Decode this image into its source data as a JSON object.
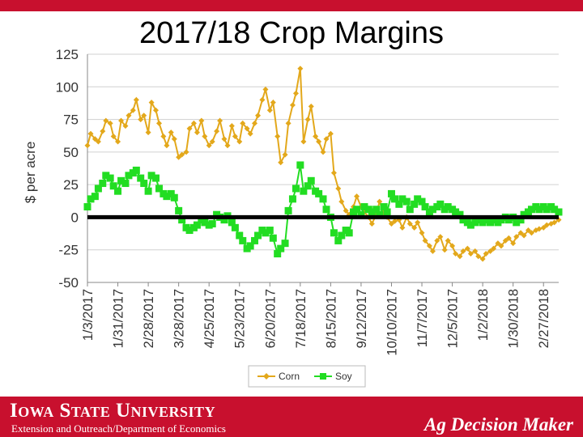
{
  "slide": {
    "title": "2017/18 Crop Margins"
  },
  "footer": {
    "university": "Iowa State University",
    "department": "Extension and Outreach/Department of Economics",
    "brand": "Ag Decision Maker"
  },
  "colors": {
    "corn": "#e3a81b",
    "soy": "#22dd22",
    "zero_line": "#000000",
    "brand_red": "#c8102e"
  },
  "chart_data": {
    "type": "line",
    "title": "2017/18 Crop Margins",
    "ylabel": "$ per acre",
    "xlabel": "",
    "ylim": [
      -50,
      125
    ],
    "yticks": [
      125,
      100,
      75,
      50,
      25,
      0,
      -25,
      -50
    ],
    "xlim": [
      "2017-01-03",
      "2018-03-13"
    ],
    "xtick_labels": [
      "1/3/2017",
      "1/31/2017",
      "2/28/2017",
      "3/28/2017",
      "4/25/2017",
      "5/23/2017",
      "6/20/2017",
      "7/18/2017",
      "8/15/2017",
      "9/12/2017",
      "10/10/2017",
      "11/7/2017",
      "12/5/2017",
      "1/2/2018",
      "1/30/2018",
      "2/27/2018"
    ],
    "xtick_dates": [
      "2017-01-03",
      "2017-01-31",
      "2017-02-28",
      "2017-03-28",
      "2017-04-25",
      "2017-05-23",
      "2017-06-20",
      "2017-07-18",
      "2017-08-15",
      "2017-09-12",
      "2017-10-10",
      "2017-11-07",
      "2017-12-05",
      "2018-01-02",
      "2018-01-30",
      "2018-02-27"
    ],
    "grid": "horizontal",
    "legend_position": "bottom",
    "series": [
      {
        "name": "Corn",
        "color": "#e3a81b",
        "marker": "diamond",
        "points": [
          [
            "2017-01-03",
            55
          ],
          [
            "2017-01-06",
            64
          ],
          [
            "2017-01-10",
            60
          ],
          [
            "2017-01-13",
            58
          ],
          [
            "2017-01-17",
            66
          ],
          [
            "2017-01-20",
            74
          ],
          [
            "2017-01-24",
            72
          ],
          [
            "2017-01-27",
            62
          ],
          [
            "2017-01-31",
            58
          ],
          [
            "2017-02-03",
            74
          ],
          [
            "2017-02-07",
            70
          ],
          [
            "2017-02-10",
            78
          ],
          [
            "2017-02-14",
            82
          ],
          [
            "2017-02-17",
            90
          ],
          [
            "2017-02-21",
            75
          ],
          [
            "2017-02-24",
            78
          ],
          [
            "2017-02-28",
            65
          ],
          [
            "2017-03-03",
            88
          ],
          [
            "2017-03-07",
            82
          ],
          [
            "2017-03-10",
            72
          ],
          [
            "2017-03-14",
            62
          ],
          [
            "2017-03-17",
            55
          ],
          [
            "2017-03-21",
            65
          ],
          [
            "2017-03-24",
            60
          ],
          [
            "2017-03-28",
            46
          ],
          [
            "2017-03-31",
            48
          ],
          [
            "2017-04-04",
            50
          ],
          [
            "2017-04-07",
            68
          ],
          [
            "2017-04-11",
            72
          ],
          [
            "2017-04-14",
            65
          ],
          [
            "2017-04-18",
            74
          ],
          [
            "2017-04-21",
            62
          ],
          [
            "2017-04-25",
            55
          ],
          [
            "2017-04-28",
            58
          ],
          [
            "2017-05-02",
            66
          ],
          [
            "2017-05-05",
            74
          ],
          [
            "2017-05-09",
            60
          ],
          [
            "2017-05-12",
            55
          ],
          [
            "2017-05-16",
            70
          ],
          [
            "2017-05-19",
            62
          ],
          [
            "2017-05-23",
            58
          ],
          [
            "2017-05-26",
            72
          ],
          [
            "2017-05-30",
            68
          ],
          [
            "2017-06-02",
            64
          ],
          [
            "2017-06-06",
            72
          ],
          [
            "2017-06-09",
            78
          ],
          [
            "2017-06-13",
            90
          ],
          [
            "2017-06-16",
            98
          ],
          [
            "2017-06-20",
            82
          ],
          [
            "2017-06-23",
            88
          ],
          [
            "2017-06-27",
            62
          ],
          [
            "2017-06-30",
            42
          ],
          [
            "2017-07-04",
            48
          ],
          [
            "2017-07-07",
            72
          ],
          [
            "2017-07-11",
            86
          ],
          [
            "2017-07-14",
            95
          ],
          [
            "2017-07-18",
            114
          ],
          [
            "2017-07-21",
            58
          ],
          [
            "2017-07-25",
            75
          ],
          [
            "2017-07-28",
            85
          ],
          [
            "2017-08-01",
            62
          ],
          [
            "2017-08-04",
            58
          ],
          [
            "2017-08-08",
            50
          ],
          [
            "2017-08-11",
            60
          ],
          [
            "2017-08-15",
            64
          ],
          [
            "2017-08-18",
            34
          ],
          [
            "2017-08-22",
            22
          ],
          [
            "2017-08-25",
            12
          ],
          [
            "2017-08-29",
            5
          ],
          [
            "2017-09-01",
            2
          ],
          [
            "2017-09-05",
            8
          ],
          [
            "2017-09-08",
            16
          ],
          [
            "2017-09-12",
            8
          ],
          [
            "2017-09-15",
            4
          ],
          [
            "2017-09-19",
            0
          ],
          [
            "2017-09-22",
            -5
          ],
          [
            "2017-09-26",
            2
          ],
          [
            "2017-09-29",
            12
          ],
          [
            "2017-10-03",
            3
          ],
          [
            "2017-10-06",
            0
          ],
          [
            "2017-10-10",
            -5
          ],
          [
            "2017-10-13",
            -3
          ],
          [
            "2017-10-17",
            -2
          ],
          [
            "2017-10-20",
            -8
          ],
          [
            "2017-10-24",
            0
          ],
          [
            "2017-10-27",
            -5
          ],
          [
            "2017-10-31",
            -8
          ],
          [
            "2017-11-03",
            -4
          ],
          [
            "2017-11-07",
            -12
          ],
          [
            "2017-11-10",
            -18
          ],
          [
            "2017-11-14",
            -22
          ],
          [
            "2017-11-17",
            -26
          ],
          [
            "2017-11-21",
            -18
          ],
          [
            "2017-11-24",
            -15
          ],
          [
            "2017-11-28",
            -25
          ],
          [
            "2017-12-01",
            -18
          ],
          [
            "2017-12-05",
            -22
          ],
          [
            "2017-12-08",
            -28
          ],
          [
            "2017-12-12",
            -30
          ],
          [
            "2017-12-15",
            -26
          ],
          [
            "2017-12-19",
            -24
          ],
          [
            "2017-12-22",
            -28
          ],
          [
            "2017-12-26",
            -26
          ],
          [
            "2017-12-29",
            -30
          ],
          [
            "2018-01-02",
            -32
          ],
          [
            "2018-01-05",
            -28
          ],
          [
            "2018-01-09",
            -26
          ],
          [
            "2018-01-12",
            -24
          ],
          [
            "2018-01-16",
            -20
          ],
          [
            "2018-01-19",
            -22
          ],
          [
            "2018-01-23",
            -18
          ],
          [
            "2018-01-26",
            -16
          ],
          [
            "2018-01-30",
            -20
          ],
          [
            "2018-02-02",
            -15
          ],
          [
            "2018-02-06",
            -12
          ],
          [
            "2018-02-09",
            -14
          ],
          [
            "2018-02-13",
            -10
          ],
          [
            "2018-02-16",
            -12
          ],
          [
            "2018-02-20",
            -10
          ],
          [
            "2018-02-23",
            -9
          ],
          [
            "2018-02-27",
            -8
          ],
          [
            "2018-03-02",
            -6
          ],
          [
            "2018-03-06",
            -5
          ],
          [
            "2018-03-09",
            -4
          ],
          [
            "2018-03-13",
            -2
          ]
        ]
      },
      {
        "name": "Soy",
        "color": "#22dd22",
        "marker": "square",
        "points": [
          [
            "2017-01-03",
            8
          ],
          [
            "2017-01-06",
            14
          ],
          [
            "2017-01-10",
            16
          ],
          [
            "2017-01-13",
            22
          ],
          [
            "2017-01-17",
            26
          ],
          [
            "2017-01-20",
            32
          ],
          [
            "2017-01-24",
            30
          ],
          [
            "2017-01-27",
            24
          ],
          [
            "2017-01-31",
            20
          ],
          [
            "2017-02-03",
            28
          ],
          [
            "2017-02-07",
            26
          ],
          [
            "2017-02-10",
            32
          ],
          [
            "2017-02-14",
            34
          ],
          [
            "2017-02-17",
            36
          ],
          [
            "2017-02-21",
            30
          ],
          [
            "2017-02-24",
            26
          ],
          [
            "2017-02-28",
            20
          ],
          [
            "2017-03-03",
            32
          ],
          [
            "2017-03-07",
            30
          ],
          [
            "2017-03-10",
            22
          ],
          [
            "2017-03-14",
            18
          ],
          [
            "2017-03-17",
            16
          ],
          [
            "2017-03-21",
            18
          ],
          [
            "2017-03-24",
            15
          ],
          [
            "2017-03-28",
            5
          ],
          [
            "2017-03-31",
            -2
          ],
          [
            "2017-04-04",
            -8
          ],
          [
            "2017-04-07",
            -10
          ],
          [
            "2017-04-11",
            -8
          ],
          [
            "2017-04-14",
            -6
          ],
          [
            "2017-04-18",
            -2
          ],
          [
            "2017-04-21",
            -4
          ],
          [
            "2017-04-25",
            -6
          ],
          [
            "2017-04-28",
            -5
          ],
          [
            "2017-05-02",
            2
          ],
          [
            "2017-05-05",
            0
          ],
          [
            "2017-05-09",
            -2
          ],
          [
            "2017-05-12",
            1
          ],
          [
            "2017-05-16",
            -4
          ],
          [
            "2017-05-19",
            -8
          ],
          [
            "2017-05-23",
            -14
          ],
          [
            "2017-05-26",
            -18
          ],
          [
            "2017-05-30",
            -24
          ],
          [
            "2017-06-02",
            -22
          ],
          [
            "2017-06-06",
            -18
          ],
          [
            "2017-06-09",
            -14
          ],
          [
            "2017-06-13",
            -10
          ],
          [
            "2017-06-16",
            -12
          ],
          [
            "2017-06-20",
            -10
          ],
          [
            "2017-06-23",
            -16
          ],
          [
            "2017-06-27",
            -28
          ],
          [
            "2017-06-30",
            -24
          ],
          [
            "2017-07-04",
            -20
          ],
          [
            "2017-07-07",
            5
          ],
          [
            "2017-07-11",
            14
          ],
          [
            "2017-07-14",
            22
          ],
          [
            "2017-07-18",
            40
          ],
          [
            "2017-07-21",
            20
          ],
          [
            "2017-07-25",
            24
          ],
          [
            "2017-07-28",
            28
          ],
          [
            "2017-08-01",
            20
          ],
          [
            "2017-08-04",
            18
          ],
          [
            "2017-08-08",
            14
          ],
          [
            "2017-08-11",
            6
          ],
          [
            "2017-08-15",
            0
          ],
          [
            "2017-08-18",
            -12
          ],
          [
            "2017-08-22",
            -18
          ],
          [
            "2017-08-25",
            -14
          ],
          [
            "2017-08-29",
            -10
          ],
          [
            "2017-09-01",
            -12
          ],
          [
            "2017-09-05",
            4
          ],
          [
            "2017-09-08",
            6
          ],
          [
            "2017-09-12",
            2
          ],
          [
            "2017-09-15",
            8
          ],
          [
            "2017-09-19",
            6
          ],
          [
            "2017-09-22",
            4
          ],
          [
            "2017-09-26",
            6
          ],
          [
            "2017-09-29",
            2
          ],
          [
            "2017-10-03",
            8
          ],
          [
            "2017-10-06",
            4
          ],
          [
            "2017-10-10",
            18
          ],
          [
            "2017-10-13",
            14
          ],
          [
            "2017-10-17",
            10
          ],
          [
            "2017-10-20",
            14
          ],
          [
            "2017-10-24",
            12
          ],
          [
            "2017-10-27",
            6
          ],
          [
            "2017-10-31",
            10
          ],
          [
            "2017-11-03",
            14
          ],
          [
            "2017-11-07",
            12
          ],
          [
            "2017-11-10",
            8
          ],
          [
            "2017-11-14",
            4
          ],
          [
            "2017-11-17",
            6
          ],
          [
            "2017-11-21",
            8
          ],
          [
            "2017-11-24",
            10
          ],
          [
            "2017-11-28",
            6
          ],
          [
            "2017-12-01",
            8
          ],
          [
            "2017-12-05",
            6
          ],
          [
            "2017-12-08",
            4
          ],
          [
            "2017-12-12",
            2
          ],
          [
            "2017-12-15",
            -2
          ],
          [
            "2017-12-19",
            -4
          ],
          [
            "2017-12-22",
            -6
          ],
          [
            "2017-12-26",
            -4
          ],
          [
            "2017-12-29",
            -2
          ],
          [
            "2018-01-02",
            -4
          ],
          [
            "2018-01-05",
            -2
          ],
          [
            "2018-01-09",
            -4
          ],
          [
            "2018-01-12",
            -2
          ],
          [
            "2018-01-16",
            -4
          ],
          [
            "2018-01-19",
            -2
          ],
          [
            "2018-01-23",
            0
          ],
          [
            "2018-01-26",
            -2
          ],
          [
            "2018-01-30",
            0
          ],
          [
            "2018-02-02",
            -4
          ],
          [
            "2018-02-06",
            -2
          ],
          [
            "2018-02-09",
            2
          ],
          [
            "2018-02-13",
            4
          ],
          [
            "2018-02-16",
            6
          ],
          [
            "2018-02-20",
            8
          ],
          [
            "2018-02-23",
            6
          ],
          [
            "2018-02-27",
            8
          ],
          [
            "2018-03-02",
            6
          ],
          [
            "2018-03-06",
            8
          ],
          [
            "2018-03-09",
            6
          ],
          [
            "2018-03-13",
            4
          ]
        ]
      }
    ]
  }
}
